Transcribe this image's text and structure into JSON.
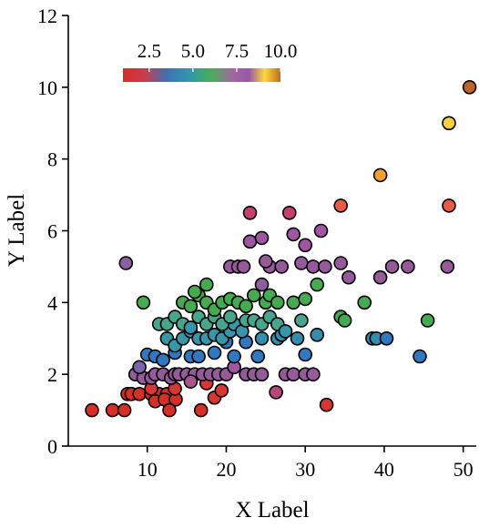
{
  "chart_data": {
    "type": "scatter",
    "xlabel": "X Label",
    "ylabel": "Y Label",
    "xlim": [
      0,
      52
    ],
    "ylim": [
      0,
      12
    ],
    "xticks": [
      "10",
      "20",
      "30",
      "40",
      "50"
    ],
    "yticks": [
      "0",
      "2",
      "4",
      "6",
      "8",
      "10",
      "12"
    ],
    "grid": false,
    "colorbar": {
      "colormap": "Spectral_r",
      "range": [
        1,
        10
      ],
      "orientation": "horizontal",
      "placement": "top-left",
      "ticks": [
        "2.5",
        "5.0",
        "7.5",
        "10.0"
      ]
    },
    "points": [
      [
        3,
        1
      ],
      [
        5.6,
        1
      ],
      [
        7.1,
        1
      ],
      [
        7.5,
        1.45
      ],
      [
        8,
        1.45
      ],
      [
        9,
        1.45
      ],
      [
        10.5,
        1.45
      ],
      [
        11.5,
        1.45
      ],
      [
        12.5,
        1.45
      ],
      [
        11,
        1.25
      ],
      [
        12.2,
        1.3
      ],
      [
        13.6,
        1.3
      ],
      [
        12.8,
        1
      ],
      [
        16.8,
        1
      ],
      [
        13.5,
        1.6
      ],
      [
        10.5,
        1.6
      ],
      [
        18.5,
        1.35
      ],
      [
        19.4,
        1.55
      ],
      [
        17.5,
        1.75
      ],
      [
        32.7,
        1.15
      ],
      [
        8.5,
        2
      ],
      [
        9.5,
        1.9
      ],
      [
        10.5,
        1.9
      ],
      [
        11,
        2
      ],
      [
        12,
        2
      ],
      [
        13,
        1.9
      ],
      [
        13.5,
        2
      ],
      [
        14,
        2
      ],
      [
        15,
        2
      ],
      [
        16,
        2
      ],
      [
        17,
        2
      ],
      [
        18,
        2
      ],
      [
        19,
        2
      ],
      [
        20,
        2
      ],
      [
        22.5,
        2
      ],
      [
        23.5,
        2
      ],
      [
        24.5,
        2
      ],
      [
        27.5,
        2
      ],
      [
        28.5,
        2
      ],
      [
        30,
        2
      ],
      [
        31,
        2
      ],
      [
        26.3,
        1.5
      ],
      [
        15.5,
        1.8
      ],
      [
        21,
        2.2
      ],
      [
        9,
        2.2
      ],
      [
        10,
        2.55
      ],
      [
        11,
        2.5
      ],
      [
        12,
        2.4
      ],
      [
        13.5,
        2.6
      ],
      [
        15.5,
        2.5
      ],
      [
        16.5,
        2.5
      ],
      [
        18.5,
        2.6
      ],
      [
        20,
        2.9
      ],
      [
        21,
        2.5
      ],
      [
        22.5,
        2.9
      ],
      [
        24,
        2.5
      ],
      [
        24.5,
        3
      ],
      [
        26.5,
        3
      ],
      [
        27,
        3.1
      ],
      [
        29,
        3
      ],
      [
        30,
        2.55
      ],
      [
        31.5,
        3.1
      ],
      [
        38.5,
        3
      ],
      [
        39,
        3
      ],
      [
        40.3,
        3
      ],
      [
        44.5,
        2.5
      ],
      [
        12.5,
        3
      ],
      [
        13.5,
        2.8
      ],
      [
        14.5,
        3
      ],
      [
        15.5,
        3.2
      ],
      [
        16.5,
        3
      ],
      [
        17.5,
        3
      ],
      [
        18.5,
        3.1
      ],
      [
        19.5,
        3
      ],
      [
        20.5,
        3.2
      ],
      [
        21,
        3.4
      ],
      [
        22,
        3.2
      ],
      [
        11.5,
        3.4
      ],
      [
        12.5,
        3.4
      ],
      [
        13.5,
        3.6
      ],
      [
        14.5,
        3.4
      ],
      [
        15.5,
        3.3
      ],
      [
        16.5,
        3.6
      ],
      [
        17.5,
        3.4
      ],
      [
        18.5,
        3.6
      ],
      [
        19.5,
        3.4
      ],
      [
        20.5,
        3.6
      ],
      [
        22.5,
        3.5
      ],
      [
        23.5,
        3.5
      ],
      [
        24.5,
        3.4
      ],
      [
        25.5,
        3.6
      ],
      [
        26.5,
        3.4
      ],
      [
        27.5,
        3.2
      ],
      [
        29.5,
        3.5
      ],
      [
        9.5,
        4
      ],
      [
        14.5,
        4
      ],
      [
        15.5,
        3.9
      ],
      [
        16.5,
        4.2
      ],
      [
        17.5,
        4
      ],
      [
        18.5,
        3.8
      ],
      [
        19.5,
        4
      ],
      [
        20.5,
        4.1
      ],
      [
        21.5,
        4
      ],
      [
        22.5,
        3.9
      ],
      [
        23.5,
        4.2
      ],
      [
        25,
        4
      ],
      [
        25.5,
        4.2
      ],
      [
        26.5,
        4
      ],
      [
        28.5,
        4
      ],
      [
        30,
        4.1
      ],
      [
        31.5,
        4.5
      ],
      [
        34.5,
        3.6
      ],
      [
        35,
        3.5
      ],
      [
        37.5,
        4
      ],
      [
        45.5,
        3.5
      ],
      [
        16,
        4.3
      ],
      [
        17.5,
        4.5
      ],
      [
        24.5,
        4.5
      ],
      [
        7.3,
        5.1
      ],
      [
        20.5,
        5
      ],
      [
        21.5,
        5
      ],
      [
        22.2,
        5
      ],
      [
        25.5,
        5
      ],
      [
        27,
        5
      ],
      [
        29.5,
        5.1
      ],
      [
        31,
        5
      ],
      [
        32.5,
        5
      ],
      [
        34.5,
        5.1
      ],
      [
        35.5,
        4.7
      ],
      [
        39.5,
        4.7
      ],
      [
        41,
        5
      ],
      [
        43,
        5
      ],
      [
        48,
        5
      ],
      [
        25,
        5.15
      ],
      [
        23,
        5.7
      ],
      [
        24.5,
        5.8
      ],
      [
        28.5,
        5.9
      ],
      [
        30,
        5.6
      ],
      [
        32,
        6
      ],
      [
        23,
        6.5
      ],
      [
        28,
        6.5
      ],
      [
        34.5,
        6.7
      ],
      [
        48.2,
        6.7
      ],
      [
        39.5,
        7.55
      ],
      [
        48.2,
        9
      ],
      [
        50.8,
        10
      ]
    ],
    "values": [
      1,
      1,
      1,
      1,
      1,
      1,
      1,
      1,
      1,
      1,
      1,
      1,
      1,
      1,
      1.2,
      1.2,
      1.2,
      1.2,
      1.2,
      1.2,
      6.5,
      6.5,
      6.5,
      6.5,
      6.5,
      6.5,
      6.5,
      6.5,
      6.5,
      6.5,
      6.5,
      6.5,
      6.5,
      6.5,
      6.5,
      6.5,
      6.5,
      6.5,
      6.5,
      6.5,
      6.5,
      7.3,
      7,
      6.8,
      6,
      3.8,
      3.8,
      3.8,
      3.8,
      3.8,
      3.8,
      3.8,
      3.8,
      3.8,
      3.8,
      3.8,
      4.2,
      4.2,
      4.2,
      4.2,
      3.8,
      4.2,
      4.2,
      4.2,
      3.8,
      3.8,
      4.3,
      4.3,
      4.3,
      4.3,
      4.3,
      4.3,
      4.3,
      4.3,
      4.3,
      4.3,
      4.3,
      4.8,
      4.8,
      4.8,
      4.8,
      4.3,
      4.8,
      4.8,
      4.8,
      4.8,
      4.8,
      4.8,
      4.8,
      4.8,
      4.8,
      4.8,
      4.3,
      4.8,
      5.3,
      5.3,
      5.3,
      5.3,
      5.3,
      5.3,
      5.3,
      5.3,
      5.3,
      5.3,
      5.3,
      5.3,
      5.3,
      5.3,
      5.3,
      5.3,
      5.3,
      5.3,
      5.3,
      5.3,
      5.3,
      5.3,
      5.3,
      6.3,
      6.3,
      6.5,
      6.5,
      6.5,
      6.5,
      6.5,
      6.5,
      6.5,
      6.5,
      6.5,
      6.5,
      6.5,
      6.5,
      6.5,
      6.5,
      6.5,
      6.8,
      6.8,
      6.8,
      6.8,
      6.8,
      7.5,
      7.5,
      7.8,
      7.8,
      8.8,
      9.4,
      10
    ]
  },
  "colors": {
    "background": "#ffffff",
    "axis": "#000000",
    "marker_edge": "#000000"
  }
}
